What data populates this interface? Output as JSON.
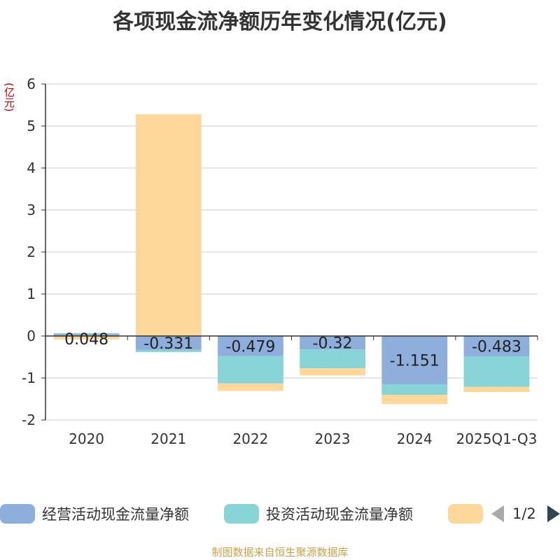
{
  "chart_data": {
    "type": "bar",
    "stacked": true,
    "title": "各项现金流净额历年变化情况(亿元)",
    "ylabel": "(亿元)",
    "xlabel": "",
    "ylim": [
      -2,
      6
    ],
    "yticks": [
      -2,
      -1,
      0,
      1,
      2,
      3,
      4,
      5,
      6
    ],
    "categories": [
      "2020",
      "2021",
      "2022",
      "2023",
      "2024",
      "2025Q1-Q3"
    ],
    "series": [
      {
        "name": "经营活动现金流量净额",
        "color": "#8eaedb",
        "values": [
          0.048,
          -0.331,
          -0.479,
          -0.32,
          -1.151,
          -0.483
        ],
        "labels": [
          "0.048",
          "-0.331",
          "-0.479",
          "-0.32",
          "-1.151",
          "-0.483"
        ]
      },
      {
        "name": "投资活动现金流量净额",
        "color": "#86d4d6",
        "values": [
          0.02,
          -0.05,
          -0.65,
          -0.45,
          -0.25,
          -0.73
        ]
      },
      {
        "name": "",
        "color": "#fdd89a",
        "values": [
          -0.08,
          5.28,
          -0.18,
          -0.17,
          -0.22,
          -0.12
        ]
      }
    ],
    "legend": {
      "page": "1/2"
    },
    "source": "制图数据来自恒生聚源数据库"
  }
}
